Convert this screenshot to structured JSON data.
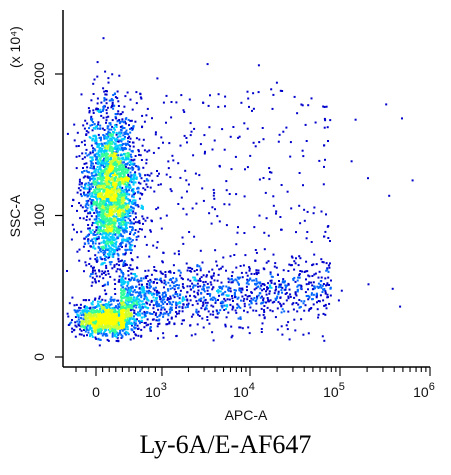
{
  "chart_data": {
    "type": "scatter",
    "style": "flow-cytometry density dot plot",
    "xlabel": "APC-A",
    "ylabel": "SSC-A",
    "y_multiplier": "(x 10⁴)",
    "x_scale": "biexponential (linear near 0, log above)",
    "x_ticks": [
      {
        "value": 0,
        "label": "0"
      },
      {
        "value": 1000,
        "label": "10",
        "exp": "3"
      },
      {
        "value": 10000,
        "label": "10",
        "exp": "4"
      },
      {
        "value": 100000,
        "label": "10",
        "exp": "5"
      },
      {
        "value": 1000000,
        "label": "10",
        "exp": "6"
      }
    ],
    "y_ticks": [
      {
        "value": 0,
        "label": "0"
      },
      {
        "value": 100,
        "label": "100"
      },
      {
        "value": 200,
        "label": "200"
      }
    ],
    "ylim": [
      -8,
      245
    ],
    "xlim_approx": [
      -300,
      1000000
    ],
    "density_colors": [
      "#0000cc",
      "#0066ff",
      "#00ccff",
      "#33ff99",
      "#ccff33",
      "#ffff00"
    ],
    "populations": [
      {
        "x_approx": 150,
        "y_approx": 120,
        "density": "high"
      },
      {
        "x_approx": 100,
        "y_approx": 28,
        "density": "high"
      },
      {
        "x_range": [
          1000,
          60000
        ],
        "y_range": [
          20,
          70
        ],
        "density": "low"
      }
    ],
    "grid": false,
    "legend": "none"
  },
  "caption": "Ly-6A/E-AF647"
}
